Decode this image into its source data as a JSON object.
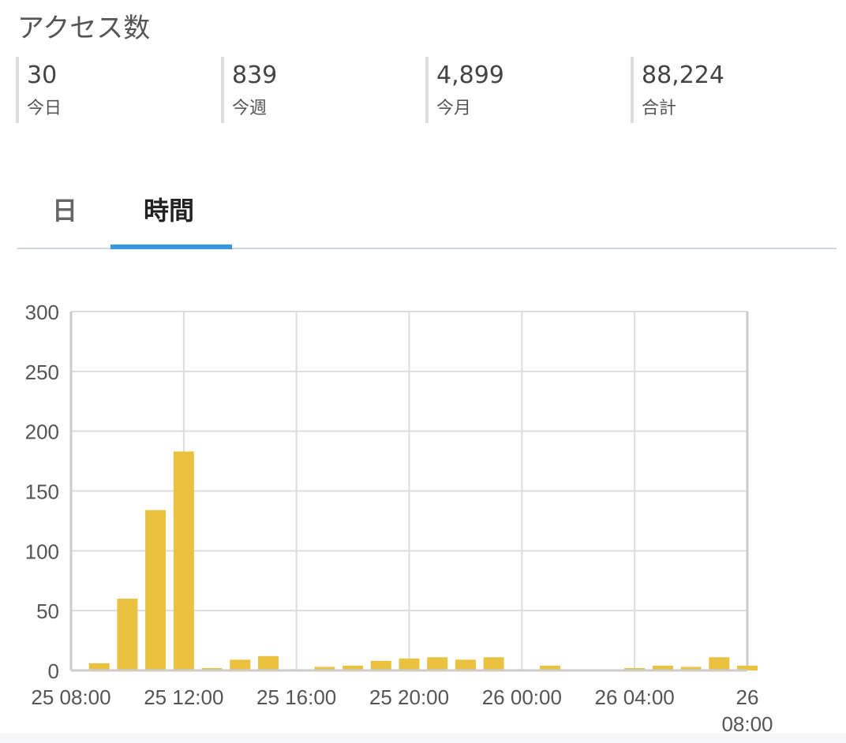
{
  "header": {
    "title": "アクセス数"
  },
  "stats": [
    {
      "value": "30",
      "label": "今日"
    },
    {
      "value": "839",
      "label": "今週"
    },
    {
      "value": "4,899",
      "label": "今月"
    },
    {
      "value": "88,224",
      "label": "合計"
    }
  ],
  "tabs": [
    {
      "label": "日",
      "active": false
    },
    {
      "label": "時間",
      "active": true
    }
  ],
  "colors": {
    "bar": "#ebc240",
    "tab_indicator": "#3a98e0"
  },
  "chart_data": {
    "type": "bar",
    "categories": [
      "25 09:00",
      "25 10:00",
      "25 11:00",
      "25 12:00",
      "25 13:00",
      "25 14:00",
      "25 15:00",
      "25 16:00",
      "25 17:00",
      "25 18:00",
      "25 19:00",
      "25 20:00",
      "25 21:00",
      "25 22:00",
      "25 23:00",
      "26 00:00",
      "26 01:00",
      "26 02:00",
      "26 03:00",
      "26 04:00",
      "26 05:00",
      "26 06:00",
      "26 07:00",
      "26 08:00"
    ],
    "values": [
      6,
      60,
      134,
      183,
      2,
      9,
      12,
      1,
      3,
      4,
      8,
      10,
      11,
      9,
      11,
      1,
      4,
      1,
      0,
      2,
      4,
      3,
      11,
      4
    ],
    "ylim": [
      0,
      300
    ],
    "yticks": [
      "0",
      "50",
      "100",
      "150",
      "200",
      "250",
      "300"
    ],
    "xticks": [
      "25 08:00",
      "25 12:00",
      "25 16:00",
      "25 20:00",
      "26 00:00",
      "26 04:00",
      "26 08:00"
    ],
    "grid": true
  }
}
